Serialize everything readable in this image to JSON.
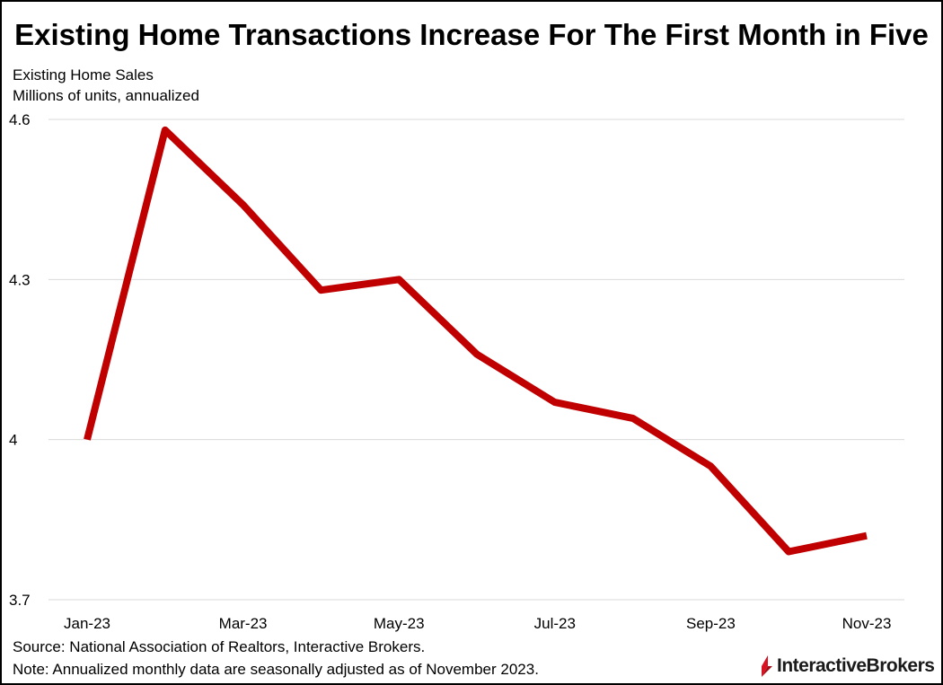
{
  "chart_data": {
    "type": "line",
    "title": "Existing Home Transactions Increase For The First Month in Five",
    "subtitle_lines": [
      "Existing Home Sales",
      "Millions of units, annualized"
    ],
    "x": [
      "Jan-23",
      "Feb-23",
      "Mar-23",
      "Apr-23",
      "May-23",
      "Jun-23",
      "Jul-23",
      "Aug-23",
      "Sep-23",
      "Oct-23",
      "Nov-23"
    ],
    "x_tick_labels": [
      "Jan-23",
      "Mar-23",
      "May-23",
      "Jul-23",
      "Sep-23",
      "Nov-23"
    ],
    "series": [
      {
        "values": [
          4.0,
          4.58,
          4.44,
          4.28,
          4.3,
          4.16,
          4.07,
          4.04,
          3.95,
          3.79,
          3.82
        ]
      }
    ],
    "y_tick_labels": [
      "4.6",
      "4.3",
      "4",
      "3.7"
    ],
    "ylim": [
      3.7,
      4.6
    ],
    "grid": true,
    "line_color": "#c00000"
  },
  "footer": {
    "source": "Source: National Association of Realtors, Interactive Brokers.",
    "note": "Note: Annualized monthly data are seasonally adjusted as of November 2023."
  },
  "logo": {
    "text": "InteractiveBrokers",
    "icon": "interactive-brokers-logo-icon",
    "color": "#d81222"
  }
}
